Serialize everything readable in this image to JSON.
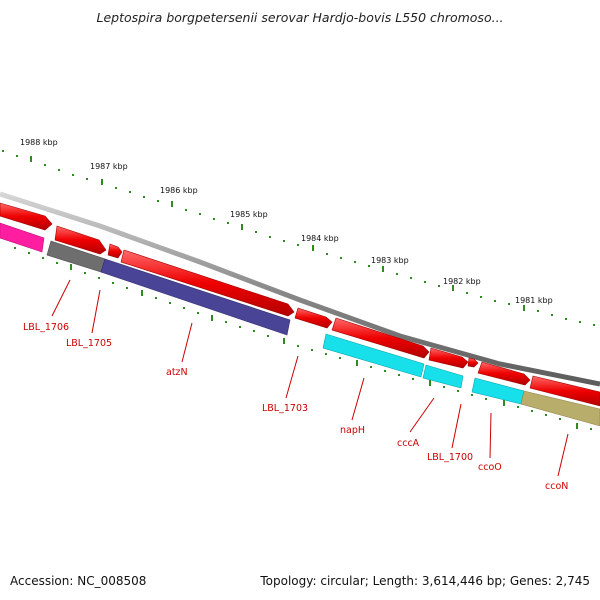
{
  "header": {
    "title": "Leptospira borgpetersenii serovar Hardjo-bovis L550 chromoso..."
  },
  "footer": {
    "accession": "Accession: NC_008508",
    "summary": "Topology: circular; Length: 3,614,446 bp; Genes: 2,745"
  },
  "colors": {
    "backbone": "#8a8a8a",
    "tick": "#2e8b22",
    "label": "#cc0000",
    "forward_gene": "#ee0000",
    "magenta": "#ff1ea0",
    "gray": "#6e6e6e",
    "indigo": "#4a4496",
    "cyan": "#18e0ea",
    "olive": "#b8ad6a"
  },
  "kbp_labels": [
    "1988 kbp",
    "1987 kbp",
    "1986 kbp",
    "1985 kbp",
    "1984 kbp",
    "1983 kbp",
    "1982 kbp",
    "1981 kbp"
  ],
  "genes": [
    {
      "label": "LBL_1706",
      "color": "magenta"
    },
    {
      "label": "LBL_1705",
      "color": "gray"
    },
    {
      "label": "atzN",
      "color": "indigo"
    },
    {
      "label": "LBL_1703",
      "color": "forward_gene"
    },
    {
      "label": "napH",
      "color": "cyan"
    },
    {
      "label": "cccA",
      "color": "cyan"
    },
    {
      "label": "LBL_1700",
      "color": "forward_gene"
    },
    {
      "label": "ccoO",
      "color": "cyan"
    },
    {
      "label": "ccoN",
      "color": "olive"
    }
  ]
}
